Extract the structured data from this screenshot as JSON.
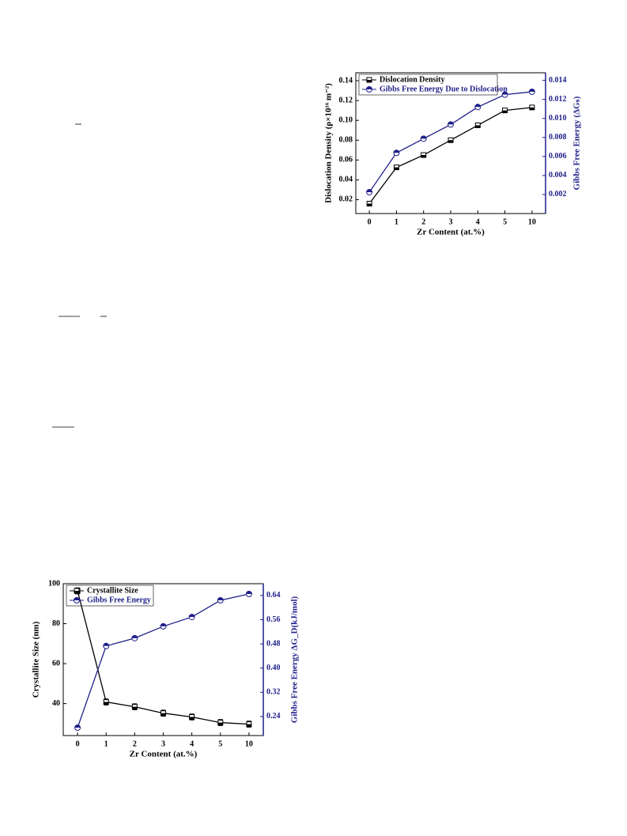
{
  "chart_data": [
    {
      "type": "line",
      "categories": [
        "0",
        "1",
        "2",
        "3",
        "4",
        "5",
        "10"
      ],
      "xlabel": "Zr Content (at.%)",
      "ylabel": "Dislocation Density (ρ×10¹⁶ m⁻²)",
      "y2label": "Gibbs Free Energy (ΔGₛ)",
      "ylim": [
        0.006,
        0.148
      ],
      "yticks": [
        0.02,
        0.04,
        0.06,
        0.08,
        {
          "value": 0.1,
          "label": "0.10"
        },
        0.12,
        0.14
      ],
      "y2lim": [
        0,
        0.0148
      ],
      "y2ticks": [
        0.002,
        0.004,
        0.006,
        0.008,
        {
          "value": 0.01,
          "label": "0.010"
        },
        0.012,
        0.014
      ],
      "legend": "upper left",
      "series": [
        {
          "name": "Dislocation Density",
          "color": "#000000",
          "marker": "square",
          "values": [
            0.016,
            0.0526,
            0.065,
            0.08,
            0.095,
            0.11,
            0.113
          ]
        },
        {
          "name": "Gibbs Free Energy Due to Dislocation",
          "color": "#1f1f8a",
          "marker": "circle",
          "axis": "y2",
          "values": [
            0.00225,
            0.00638,
            0.00787,
            0.00936,
            0.0112,
            0.0125,
            0.0128
          ]
        }
      ]
    },
    {
      "type": "line",
      "categories": [
        "0",
        "1",
        "2",
        "3",
        "4",
        "5",
        "10"
      ],
      "xlabel": "Zr Content (at.%)",
      "ylabel": "Crystallite Size (nm)",
      "y2label": "Gibbs Free Energy ΔG_D(kJ/mol)",
      "ylim": [
        24,
        100
      ],
      "yticks": [
        40,
        60,
        80,
        100
      ],
      "y2lim": [
        0.177,
        0.679
      ],
      "y2ticks": [
        0.24,
        0.32,
        {
          "value": 0.4,
          "label": "0.40"
        },
        0.48,
        0.56,
        0.64
      ],
      "legend": "upper left",
      "series": [
        {
          "name": "Crystallite Size",
          "color": "#000000",
          "marker": "square",
          "values": [
            96.4,
            40.8,
            38.4,
            35.2,
            33.3,
            30.5,
            29.7
          ],
          "errors": [
            1.5,
            1.5,
            1.5,
            1.5,
            1.5,
            1.5,
            1.5
          ]
        },
        {
          "name": "Gibbs Free Energy",
          "color": "#1f1f8a",
          "marker": "circle",
          "axis": "y2",
          "values": [
            0.203,
            0.473,
            0.499,
            0.538,
            0.569,
            0.624,
            0.645
          ]
        }
      ]
    }
  ]
}
